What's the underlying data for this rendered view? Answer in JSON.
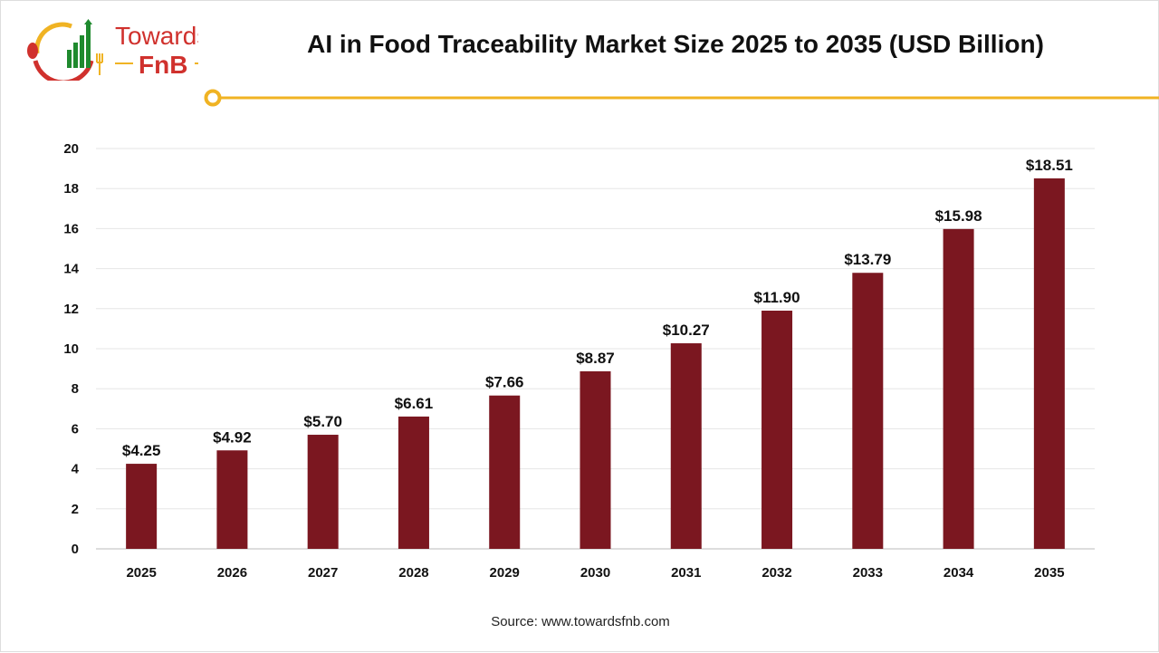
{
  "logo": {
    "line1": "Towards",
    "line2": "FnB"
  },
  "source": "Source: www.towardsfnb.com",
  "colors": {
    "bar": "#7b1720",
    "accent": "#f0b323",
    "logo_red": "#d0312d",
    "logo_green": "#1f8a2e"
  },
  "chart_data": {
    "type": "bar",
    "title": "AI in Food Traceability Market Size 2025 to 2035 (USD Billion)",
    "categories": [
      "2025",
      "2026",
      "2027",
      "2028",
      "2029",
      "2030",
      "2031",
      "2032",
      "2033",
      "2034",
      "2035"
    ],
    "values": [
      4.25,
      4.92,
      5.7,
      6.61,
      7.66,
      8.87,
      10.27,
      11.9,
      13.79,
      15.98,
      18.51
    ],
    "data_labels": [
      "$4.25",
      "$4.92",
      "$5.70",
      "$6.61",
      "$7.66",
      "$8.87",
      "$10.27",
      "$11.90",
      "$13.79",
      "$15.98",
      "$18.51"
    ],
    "xlabel": "",
    "ylabel": "",
    "ylim": [
      0,
      20
    ],
    "yticks": [
      0,
      2,
      4,
      6,
      8,
      10,
      12,
      14,
      16,
      18,
      20
    ],
    "grid": true,
    "legend": "none"
  }
}
